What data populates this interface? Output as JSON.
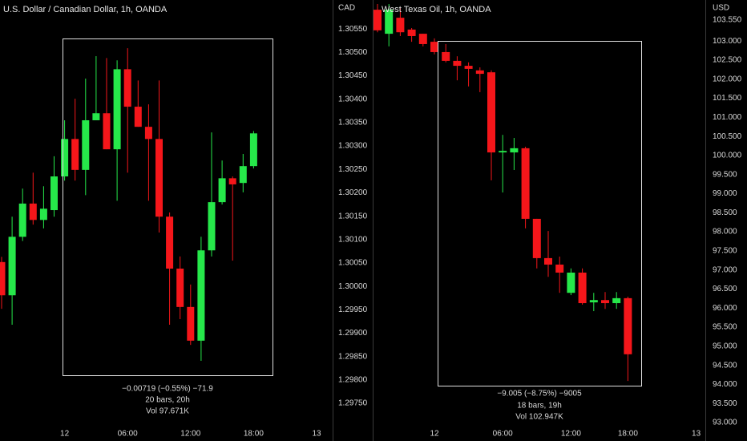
{
  "chart_data": [
    {
      "type": "candlestick",
      "title": "U.S. Dollar / Canadian Dollar, 1h, OANDA",
      "axis_label": "CAD",
      "categories": [
        null,
        null,
        null,
        null,
        null,
        null,
        "12",
        null,
        null,
        null,
        null,
        null,
        "06:00",
        null,
        null,
        null,
        null,
        null,
        "12:00",
        null,
        null,
        null,
        null,
        null,
        "18:00",
        null,
        null,
        null,
        null,
        null,
        "13"
      ],
      "open": [
        1.30052,
        1.29981,
        1.30106,
        1.30177,
        1.30142,
        1.30163,
        1.30235,
        1.30315,
        1.30249,
        1.30355,
        1.3037,
        1.30293,
        1.30464,
        1.30384,
        1.30341,
        1.30315,
        1.30149,
        1.30038,
        1.29956,
        1.29884,
        1.30077,
        1.3018,
        1.30231,
        1.30221,
        1.30257,
        null,
        null,
        null,
        null,
        null,
        null
      ],
      "high": [
        1.30063,
        1.30149,
        1.30209,
        1.30243,
        1.30214,
        1.30278,
        1.30355,
        1.30401,
        1.30444,
        1.30492,
        1.30488,
        1.30483,
        1.30509,
        1.3044,
        1.30389,
        1.3044,
        1.30158,
        1.30064,
        1.30004,
        1.30106,
        1.30329,
        1.30269,
        1.30235,
        1.30283,
        1.30332,
        null,
        null,
        null,
        null,
        null,
        null
      ],
      "low": [
        1.29952,
        1.29918,
        1.30097,
        1.30132,
        1.30124,
        1.30149,
        1.30226,
        1.30226,
        1.30195,
        1.30355,
        1.30293,
        1.30183,
        1.30243,
        1.30341,
        1.30183,
        1.30115,
        1.29918,
        1.2993,
        1.29875,
        1.29841,
        1.30064,
        1.30175,
        1.30055,
        1.30201,
        1.30252,
        null,
        null,
        null,
        null,
        null,
        null
      ],
      "close": [
        1.29981,
        1.30106,
        1.30177,
        1.30142,
        1.30166,
        1.30235,
        1.30315,
        1.30249,
        1.30355,
        1.3037,
        1.30293,
        1.30464,
        1.30384,
        1.30341,
        1.30315,
        1.30149,
        1.30038,
        1.29956,
        1.29884,
        1.30077,
        1.3018,
        1.30231,
        1.30218,
        1.30257,
        1.30327,
        null,
        null,
        null,
        null,
        null,
        null
      ],
      "up_color": "#26e84a",
      "down_color": "#f5161a",
      "ylim": [
        1.29709,
        1.30612
      ],
      "yticks": [
        {
          "value": 1.3055,
          "label": "1.30550"
        },
        {
          "value": 1.305,
          "label": "1.30500"
        },
        {
          "value": 1.3045,
          "label": "1.30450"
        },
        {
          "value": 1.304,
          "label": "1.30400"
        },
        {
          "value": 1.3035,
          "label": "1.30350"
        },
        {
          "value": 1.303,
          "label": "1.30300"
        },
        {
          "value": 1.3025,
          "label": "1.30250"
        },
        {
          "value": 1.302,
          "label": "1.30200"
        },
        {
          "value": 1.3015,
          "label": "1.30150"
        },
        {
          "value": 1.301,
          "label": "1.30100"
        },
        {
          "value": 1.3005,
          "label": "1.30050"
        },
        {
          "value": 1.3,
          "label": "1.30000"
        },
        {
          "value": 1.2995,
          "label": "1.29950"
        },
        {
          "value": 1.299,
          "label": "1.29900"
        },
        {
          "value": 1.2985,
          "label": "1.29850"
        },
        {
          "value": 1.298,
          "label": "1.29800"
        },
        {
          "value": 1.2975,
          "label": "1.29750"
        }
      ],
      "annotations": [
        "−0.00719 (−0.55%) −71.9",
        "20 bars, 20h",
        "Vol 97.671K"
      ]
    },
    {
      "type": "candlestick",
      "title": "West Texas Oil, 1h, OANDA",
      "axis_label": "USD",
      "categories": [
        null,
        null,
        null,
        null,
        null,
        "12",
        null,
        null,
        null,
        null,
        null,
        "06:00",
        null,
        null,
        null,
        null,
        null,
        "12:00",
        null,
        null,
        null,
        null,
        "18:00",
        null,
        null,
        null,
        null,
        null,
        "13"
      ],
      "open": [
        103.82,
        103.19,
        103.61,
        103.3,
        103.19,
        102.98,
        102.71,
        102.48,
        102.35,
        102.23,
        102.18,
        100.08,
        100.08,
        100.19,
        98.34,
        97.31,
        97.14,
        96.4,
        96.93,
        96.15,
        96.21,
        96.13,
        96.26,
        null,
        null,
        null,
        null,
        null,
        null
      ],
      "high": [
        103.97,
        103.97,
        103.87,
        103.34,
        103.19,
        103.07,
        102.92,
        102.6,
        102.44,
        102.31,
        102.23,
        100.54,
        100.46,
        100.23,
        98.34,
        98.02,
        97.35,
        97.04,
        97.04,
        96.4,
        96.42,
        96.42,
        96.3,
        null,
        null,
        null,
        null,
        null,
        null
      ],
      "low": [
        103.23,
        102.86,
        103.13,
        102.98,
        102.86,
        102.65,
        102.44,
        101.97,
        101.81,
        101.66,
        99.35,
        99.03,
        99.62,
        98.09,
        97.04,
        96.82,
        96.4,
        96.34,
        96.09,
        95.92,
        95.98,
        95.98,
        94.09,
        null,
        null,
        null,
        null,
        null,
        null
      ],
      "close": [
        103.28,
        103.82,
        103.23,
        103.13,
        102.92,
        102.71,
        102.48,
        102.35,
        102.27,
        102.14,
        100.08,
        100.12,
        100.19,
        98.34,
        97.31,
        97.14,
        96.93,
        96.93,
        96.13,
        96.21,
        96.13,
        96.26,
        94.79,
        null,
        null,
        null,
        null,
        null,
        null
      ],
      "up_color": "#26e84a",
      "down_color": "#f5161a",
      "ylim": [
        93.0,
        104.075
      ],
      "yticks": [
        {
          "value": 103.55,
          "label": "103.550"
        },
        {
          "value": 103,
          "label": "103.000"
        },
        {
          "value": 102.5,
          "label": "102.500"
        },
        {
          "value": 102,
          "label": "102.000"
        },
        {
          "value": 101.5,
          "label": "101.500"
        },
        {
          "value": 101,
          "label": "101.000"
        },
        {
          "value": 100.5,
          "label": "100.500"
        },
        {
          "value": 100,
          "label": "100.000"
        },
        {
          "value": 99.5,
          "label": "99.500"
        },
        {
          "value": 99,
          "label": "99.000"
        },
        {
          "value": 98.5,
          "label": "98.500"
        },
        {
          "value": 98,
          "label": "98.000"
        },
        {
          "value": 97.5,
          "label": "97.500"
        },
        {
          "value": 97,
          "label": "97.000"
        },
        {
          "value": 96.5,
          "label": "96.500"
        },
        {
          "value": 96,
          "label": "96.000"
        },
        {
          "value": 95.5,
          "label": "95.500"
        },
        {
          "value": 95,
          "label": "95.000"
        },
        {
          "value": 94.5,
          "label": "94.500"
        },
        {
          "value": 94,
          "label": "94.000"
        },
        {
          "value": 93.5,
          "label": "93.500"
        },
        {
          "value": 93,
          "label": "93.000"
        }
      ],
      "annotations": [
        "−9.005 (−8.75%) −9005",
        "18 bars, 19h",
        "Vol 102.947K"
      ]
    }
  ]
}
